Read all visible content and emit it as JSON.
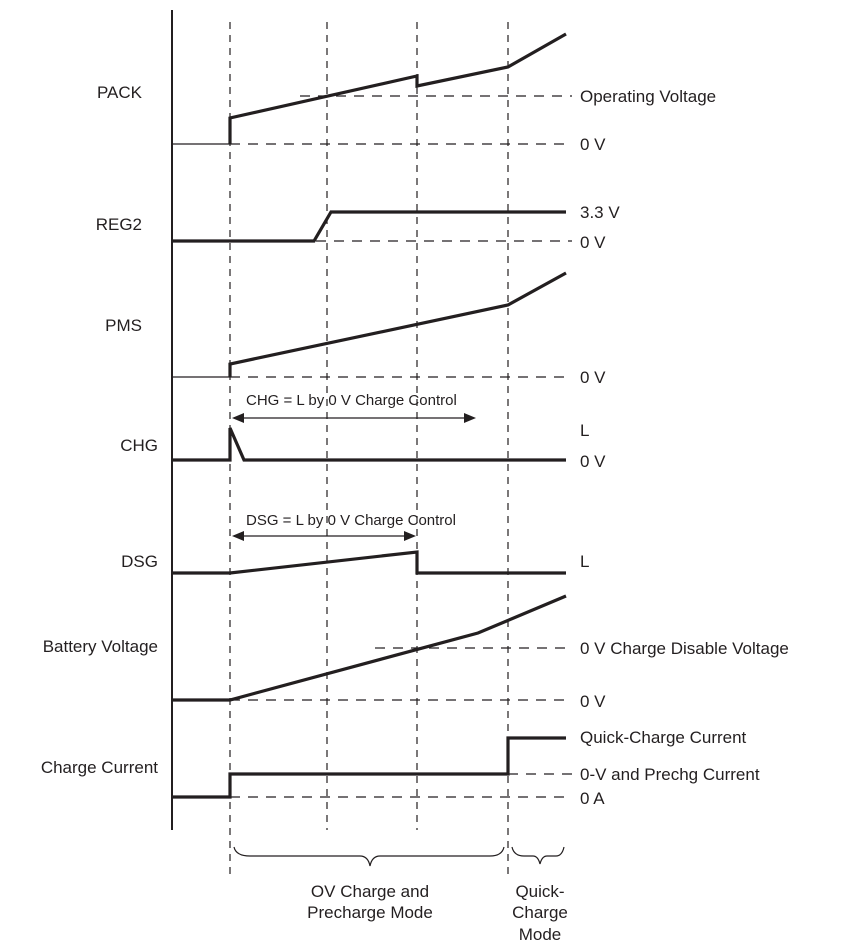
{
  "signals": {
    "pack": "PACK",
    "reg2": "REG2",
    "pms": "PMS",
    "chg": "CHG",
    "dsg": "DSG",
    "battery_voltage": "Battery Voltage",
    "charge_current": "Charge Current"
  },
  "levels": {
    "pack_operating": "Operating Voltage",
    "pack_zero": "0 V",
    "reg2_high": "3.3 V",
    "reg2_zero": "0 V",
    "pms_zero": "0 V",
    "chg_low": "L",
    "chg_zero": "0 V",
    "dsg_low": "L",
    "batt_disable": "0 V Charge Disable Voltage",
    "batt_zero": "0 V",
    "cc_quick": "Quick-Charge Current",
    "cc_prechg": "0-V and Prechg Current",
    "cc_zero": "0 A"
  },
  "annotations": {
    "chg_span": "CHG = L by 0 V Charge Control",
    "dsg_span": "DSG = L by  0 V Charge Control"
  },
  "modes": {
    "ov_line1": "OV Charge and",
    "ov_line2": "Precharge Mode",
    "quick_line1": "Quick-",
    "quick_line2": "Charge",
    "quick_line3": "Mode"
  }
}
